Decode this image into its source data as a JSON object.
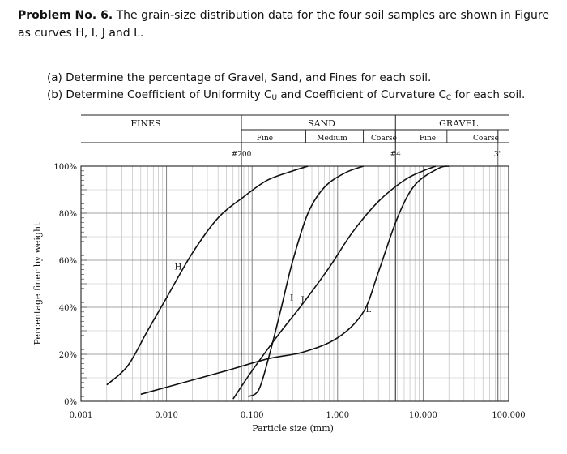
{
  "problem": {
    "heading": "Problem No. 6.",
    "statement": "The grain-size distribution data for the four soil samples are shown in Figure as curves H, I, J and L.",
    "part_a": "(a) Determine the percentage of Gravel, Sand, and Fines for each soil.",
    "part_b_prefix": "(b) Determine Coefficient of Uniformity C",
    "part_b_sub1": "U",
    "part_b_mid": " and Coefficient of Curvature C",
    "part_b_sub2": "C",
    "part_b_suffix": " for each soil."
  },
  "chart_data": {
    "type": "line",
    "x_scale": "log",
    "xlabel": "Particle size (mm)",
    "ylabel": "Percentage finer by weight",
    "xlim": [
      0.001,
      100
    ],
    "ylim": [
      0,
      100
    ],
    "x_ticks": [
      "0.001",
      "0.010",
      "0.100",
      "1.000",
      "10.000",
      "100.000"
    ],
    "y_ticks": [
      "0%",
      "20%",
      "40%",
      "60%",
      "80%",
      "100%"
    ],
    "grid": true,
    "classification": {
      "fines": "FINES",
      "sand": "SAND",
      "gravel": "GRAVEL",
      "sand_fine": "Fine",
      "sand_medium": "Medium",
      "sand_coarse": "Coarse",
      "gravel_fine": "Fine",
      "gravel_coarse": "Coarse"
    },
    "sieves": [
      {
        "label": "#200",
        "size": 0.075
      },
      {
        "label": "#4",
        "size": 4.75
      },
      {
        "label": "3\"",
        "size": 75
      }
    ],
    "series": [
      {
        "name": "H",
        "label_at": [
          0.0137,
          56
        ],
        "points": [
          [
            0.002,
            7
          ],
          [
            0.0035,
            15
          ],
          [
            0.006,
            30
          ],
          [
            0.01,
            44
          ],
          [
            0.02,
            63
          ],
          [
            0.04,
            78
          ],
          [
            0.08,
            87
          ],
          [
            0.15,
            94
          ],
          [
            0.3,
            98
          ],
          [
            0.45,
            100
          ]
        ]
      },
      {
        "name": "I",
        "label_at": [
          0.29,
          43
        ],
        "points": [
          [
            0.09,
            2
          ],
          [
            0.12,
            5
          ],
          [
            0.16,
            20
          ],
          [
            0.22,
            40
          ],
          [
            0.3,
            60
          ],
          [
            0.45,
            80
          ],
          [
            0.7,
            91
          ],
          [
            1.2,
            97
          ],
          [
            2,
            100
          ]
        ]
      },
      {
        "name": "J",
        "label_at": [
          0.39,
          42
        ],
        "points": [
          [
            0.06,
            1
          ],
          [
            0.1,
            13
          ],
          [
            0.2,
            28
          ],
          [
            0.4,
            42
          ],
          [
            0.8,
            57
          ],
          [
            1.5,
            72
          ],
          [
            3,
            85
          ],
          [
            6,
            94
          ],
          [
            10,
            98
          ],
          [
            14,
            100
          ]
        ]
      },
      {
        "name": "L",
        "label_at": [
          2.3,
          38
        ],
        "points": [
          [
            0.005,
            3
          ],
          [
            0.02,
            9
          ],
          [
            0.05,
            13
          ],
          [
            0.15,
            18
          ],
          [
            0.4,
            21
          ],
          [
            1,
            27
          ],
          [
            2,
            38
          ],
          [
            3,
            55
          ],
          [
            5,
            78
          ],
          [
            8,
            92
          ],
          [
            15,
            99
          ],
          [
            20,
            100
          ]
        ]
      }
    ]
  }
}
